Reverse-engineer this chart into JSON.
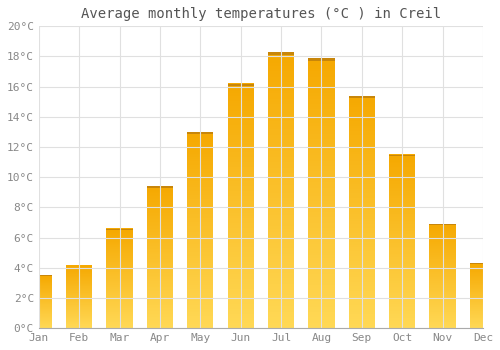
{
  "months": [
    "Jan",
    "Feb",
    "Mar",
    "Apr",
    "May",
    "Jun",
    "Jul",
    "Aug",
    "Sep",
    "Oct",
    "Nov",
    "Dec"
  ],
  "temperatures": [
    3.5,
    4.2,
    6.6,
    9.4,
    13.0,
    16.2,
    18.3,
    17.9,
    15.4,
    11.5,
    6.9,
    4.3
  ],
  "bar_color_top": "#F5A800",
  "bar_color_bottom": "#FFD855",
  "title": "Average monthly temperatures (°C ) in Creil",
  "ylim": [
    0,
    20
  ],
  "ytick_step": 2,
  "background_color": "#FFFFFF",
  "grid_color": "#E0E0E0",
  "title_fontsize": 10,
  "tick_fontsize": 8,
  "font_family": "monospace",
  "tick_color": "#888888"
}
